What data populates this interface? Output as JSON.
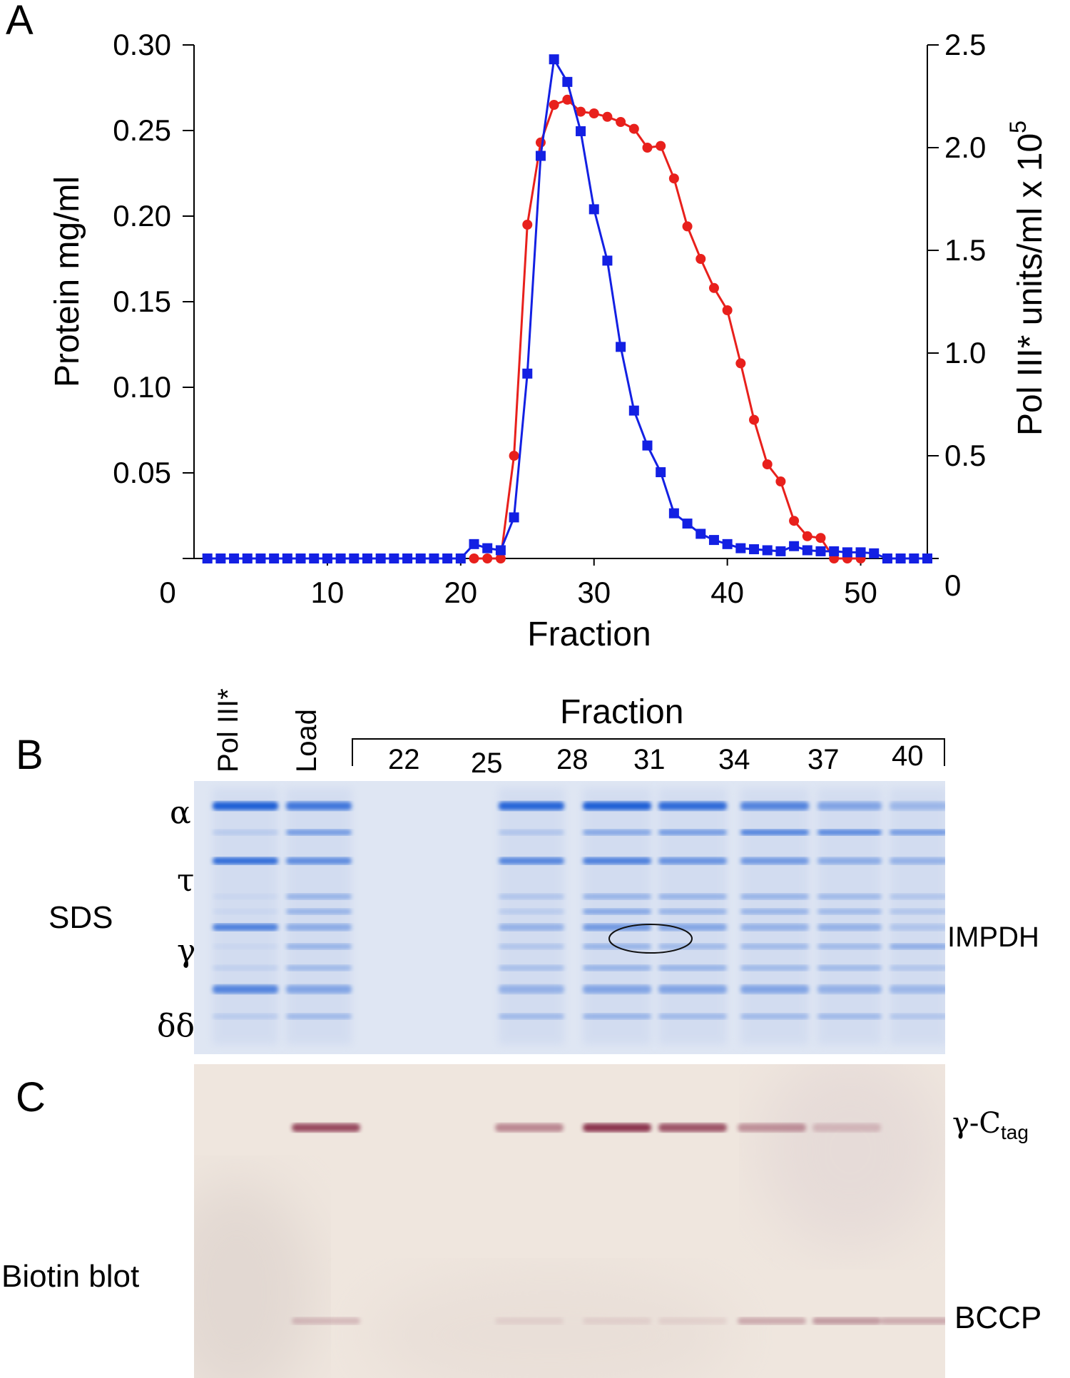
{
  "figure": {
    "panels": {
      "a": "A",
      "b": "B",
      "c": "C"
    }
  },
  "chart_data": {
    "type": "line",
    "xlabel": "Fraction",
    "ylabel_left": "Protein mg/ml",
    "ylabel_right": "Pol III* units/ml x 10",
    "ylabel_right_exponent": "5",
    "xlim": [
      0,
      55
    ],
    "ylim_left": [
      0,
      0.3
    ],
    "ylim_right": [
      0,
      2.5
    ],
    "x_ticks": [
      "0",
      "10",
      "20",
      "30",
      "40",
      "50"
    ],
    "y_left_ticks": [
      "0.30",
      "0.25",
      "0.20",
      "0.15",
      "0.10",
      "0.05"
    ],
    "y_right_ticks": [
      "2.5",
      "2.0",
      "1.5",
      "1.0",
      "0.5",
      "0"
    ],
    "grid": false,
    "series": [
      {
        "color": "#e8201c",
        "marker": "circle",
        "axis": "left",
        "x": [
          21,
          22,
          23,
          24,
          25,
          26,
          27,
          28,
          29,
          30,
          31,
          32,
          33,
          34,
          35,
          36,
          37,
          38,
          39,
          40,
          41,
          42,
          43,
          44,
          45,
          46,
          47,
          48,
          49,
          50
        ],
        "values": [
          0,
          0,
          0,
          0.06,
          0.195,
          0.243,
          0.265,
          0.268,
          0.261,
          0.26,
          0.258,
          0.255,
          0.251,
          0.24,
          0.241,
          0.222,
          0.194,
          0.175,
          0.158,
          0.145,
          0.114,
          0.081,
          0.055,
          0.045,
          0.022,
          0.013,
          0.012,
          0,
          0,
          0
        ]
      },
      {
        "color": "#1320e3",
        "marker": "square",
        "axis": "right",
        "x": [
          1,
          2,
          3,
          4,
          5,
          6,
          7,
          8,
          9,
          10,
          11,
          12,
          13,
          14,
          15,
          16,
          17,
          18,
          19,
          20,
          21,
          22,
          23,
          24,
          25,
          26,
          27,
          28,
          29,
          30,
          31,
          32,
          33,
          34,
          35,
          36,
          37,
          38,
          39,
          40,
          41,
          42,
          43,
          44,
          45,
          46,
          47,
          48,
          49,
          50,
          51,
          52,
          53,
          54,
          55
        ],
        "values": [
          0,
          0,
          0,
          0,
          0,
          0,
          0,
          0,
          0,
          0,
          0,
          0,
          0,
          0,
          0,
          0,
          0,
          0,
          0,
          0,
          0.07,
          0.05,
          0.04,
          0.2,
          0.9,
          1.96,
          2.43,
          2.32,
          2.08,
          1.7,
          1.45,
          1.03,
          0.72,
          0.55,
          0.42,
          0.22,
          0.17,
          0.12,
          0.09,
          0.07,
          0.05,
          0.045,
          0.04,
          0.035,
          0.06,
          0.04,
          0.035,
          0.035,
          0.03,
          0.03,
          0.025,
          0,
          0,
          0,
          0
        ]
      }
    ]
  },
  "gel_sds": {
    "title": "Fraction",
    "row_label": "SDS",
    "lanes_rotated": [
      "Pol III*",
      "Load"
    ],
    "fractions": [
      "22",
      "25",
      "28",
      "31",
      "34",
      "37",
      "40"
    ],
    "bands": [
      "α",
      "τ",
      "γ",
      "δδ"
    ],
    "annotation": "IMPDH"
  },
  "blot": {
    "row_label": "Biotin blot",
    "label_top": "γ-C",
    "label_top_sub": "tag",
    "label_bottom": "BCCP"
  }
}
